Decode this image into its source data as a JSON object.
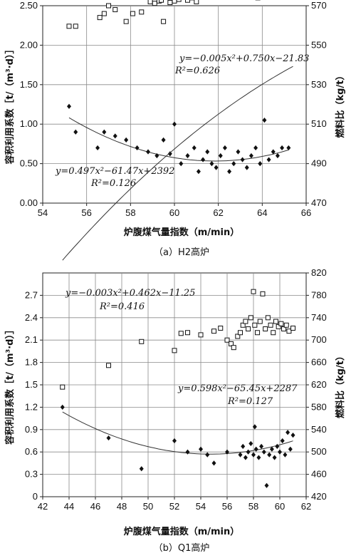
{
  "chart_data": [
    {
      "type": "scatter",
      "caption": "（a）H2高炉",
      "xlabel": "炉腹煤气量指数（m/min）",
      "ylabel": "容积利用系数［t/（m³·d）］",
      "y2label": "燃料比（kg/t）",
      "xlim": [
        54,
        66
      ],
      "ylim": [
        0,
        2.5
      ],
      "y2lim": [
        470,
        570
      ],
      "xticks": [
        "54",
        "56",
        "58",
        "60",
        "62",
        "64",
        "66"
      ],
      "yticks": [
        "0.00",
        "0.50",
        "1.00",
        "1.50",
        "2.00",
        "2.50"
      ],
      "y2ticks": [
        "470",
        "490",
        "510",
        "530",
        "550",
        "570"
      ],
      "grid": true,
      "equations": [
        {
          "text": "y=−0.005x²+0.750x−21.83",
          "r2": "R²=0.626"
        },
        {
          "text": "y=0.497x²−61.47x+2392",
          "r2": "R²=0.126"
        }
      ],
      "series": [
        {
          "marker": "square",
          "axis": "y",
          "points": [
            [
              55.2,
              2.24
            ],
            [
              55.5,
              2.24
            ],
            [
              56.6,
              2.35
            ],
            [
              56.8,
              2.4
            ],
            [
              57.0,
              2.5
            ],
            [
              57.3,
              2.45
            ],
            [
              57.8,
              2.3
            ],
            [
              58.1,
              2.4
            ],
            [
              58.5,
              2.42
            ],
            [
              58.9,
              2.55
            ],
            [
              59.1,
              2.53
            ],
            [
              59.3,
              2.56
            ],
            [
              59.4,
              2.57
            ],
            [
              59.5,
              2.3
            ],
            [
              59.8,
              2.54
            ],
            [
              60.0,
              2.56
            ],
            [
              60.2,
              2.58
            ],
            [
              60.4,
              2.62
            ],
            [
              60.6,
              2.57
            ],
            [
              60.8,
              2.6
            ],
            [
              61.0,
              2.55
            ],
            [
              61.2,
              2.63
            ],
            [
              61.4,
              2.65
            ],
            [
              61.6,
              2.61
            ],
            [
              61.8,
              2.64
            ],
            [
              62.0,
              2.66
            ],
            [
              62.2,
              2.62
            ],
            [
              62.4,
              2.65
            ],
            [
              62.6,
              2.63
            ],
            [
              62.8,
              2.66
            ],
            [
              63.0,
              2.64
            ],
            [
              63.2,
              2.62
            ],
            [
              63.4,
              2.66
            ],
            [
              63.6,
              2.65
            ],
            [
              63.8,
              2.6
            ],
            [
              64.0,
              2.66
            ],
            [
              64.2,
              2.64
            ],
            [
              64.4,
              2.65
            ],
            [
              64.6,
              2.66
            ],
            [
              64.8,
              2.64
            ],
            [
              65.0,
              2.65
            ],
            [
              65.3,
              2.64
            ],
            [
              65.6,
              2.64
            ]
          ]
        },
        {
          "marker": "diamond",
          "axis": "y2",
          "points": [
            [
              55.2,
              519
            ],
            [
              55.5,
              506
            ],
            [
              56.5,
              498
            ],
            [
              56.8,
              506
            ],
            [
              57.3,
              504
            ],
            [
              57.8,
              502
            ],
            [
              58.3,
              498
            ],
            [
              58.8,
              496
            ],
            [
              59.2,
              494
            ],
            [
              59.5,
              502
            ],
            [
              59.8,
              495
            ],
            [
              60.0,
              510
            ],
            [
              60.3,
              490
            ],
            [
              60.6,
              494
            ],
            [
              60.9,
              498
            ],
            [
              61.1,
              486
            ],
            [
              61.3,
              492
            ],
            [
              61.5,
              496
            ],
            [
              61.7,
              490
            ],
            [
              61.9,
              488
            ],
            [
              62.1,
              494
            ],
            [
              62.3,
              498
            ],
            [
              62.5,
              486
            ],
            [
              62.7,
              490
            ],
            [
              62.9,
              496
            ],
            [
              63.1,
              492
            ],
            [
              63.3,
              488
            ],
            [
              63.5,
              494
            ],
            [
              63.7,
              498
            ],
            [
              63.9,
              490
            ],
            [
              64.1,
              512
            ],
            [
              64.3,
              492
            ],
            [
              64.5,
              496
            ],
            [
              64.7,
              494
            ],
            [
              64.9,
              498
            ],
            [
              65.2,
              498
            ]
          ]
        }
      ]
    },
    {
      "type": "scatter",
      "caption": "（b）Q1高炉",
      "xlabel": "炉腹煤气量指数（m/min）",
      "ylabel": "容积利用系数［t/（m³·d）］",
      "y2label": "燃料比（kg/t）",
      "xlim": [
        42,
        62
      ],
      "ylim": [
        0,
        3.0
      ],
      "y2lim": [
        420,
        820
      ],
      "xticks": [
        "42",
        "44",
        "46",
        "48",
        "50",
        "52",
        "54",
        "56",
        "58",
        "60",
        "62"
      ],
      "yticks": [
        "0",
        "0.3",
        "0.6",
        "0.9",
        "1.2",
        "1.5",
        "1.8",
        "2.1",
        "2.4",
        "2.7"
      ],
      "y2ticks": [
        "420",
        "460",
        "500",
        "540",
        "580",
        "620",
        "660",
        "700",
        "740",
        "780",
        "820"
      ],
      "grid": true,
      "equations": [
        {
          "text": "y=−0.003x²+0.462x−11.25",
          "r2": "R²=0.416"
        },
        {
          "text": "y=0.598x²−65.45x+2287",
          "r2": "R²=0.127"
        }
      ],
      "series": [
        {
          "marker": "square",
          "axis": "y",
          "points": [
            [
              43.5,
              1.47
            ],
            [
              47.0,
              1.76
            ],
            [
              49.5,
              2.08
            ],
            [
              52.0,
              1.96
            ],
            [
              52.5,
              2.19
            ],
            [
              53.0,
              2.2
            ],
            [
              54.0,
              2.17
            ],
            [
              55.0,
              2.22
            ],
            [
              55.5,
              2.26
            ],
            [
              56.0,
              2.1
            ],
            [
              56.3,
              2.05
            ],
            [
              56.5,
              2.0
            ],
            [
              56.8,
              2.15
            ],
            [
              57.0,
              2.2
            ],
            [
              57.2,
              2.3
            ],
            [
              57.4,
              2.35
            ],
            [
              57.6,
              2.25
            ],
            [
              57.8,
              2.4
            ],
            [
              58.0,
              2.75
            ],
            [
              58.1,
              2.3
            ],
            [
              58.3,
              2.2
            ],
            [
              58.5,
              2.35
            ],
            [
              58.7,
              2.72
            ],
            [
              58.9,
              2.25
            ],
            [
              59.1,
              2.4
            ],
            [
              59.3,
              2.3
            ],
            [
              59.5,
              2.2
            ],
            [
              59.7,
              2.35
            ],
            [
              59.9,
              2.28
            ],
            [
              60.1,
              2.32
            ],
            [
              60.3,
              2.25
            ],
            [
              60.5,
              2.3
            ],
            [
              60.7,
              2.22
            ],
            [
              61.0,
              2.26
            ]
          ]
        },
        {
          "marker": "diamond",
          "axis": "y2",
          "points": [
            [
              43.5,
              580
            ],
            [
              47.0,
              525
            ],
            [
              49.5,
              470
            ],
            [
              52.0,
              520
            ],
            [
              53.0,
              500
            ],
            [
              54.0,
              505
            ],
            [
              54.5,
              495
            ],
            [
              55.0,
              480
            ],
            [
              56.0,
              500
            ],
            [
              57.0,
              495
            ],
            [
              57.2,
              510
            ],
            [
              57.4,
              490
            ],
            [
              57.6,
              500
            ],
            [
              57.8,
              515
            ],
            [
              58.0,
              495
            ],
            [
              58.1,
              545
            ],
            [
              58.2,
              505
            ],
            [
              58.4,
              490
            ],
            [
              58.6,
              510
            ],
            [
              58.8,
              500
            ],
            [
              59.0,
              440
            ],
            [
              59.2,
              495
            ],
            [
              59.4,
              505
            ],
            [
              59.6,
              490
            ],
            [
              59.8,
              510
            ],
            [
              60.0,
              500
            ],
            [
              60.2,
              520
            ],
            [
              60.4,
              495
            ],
            [
              60.6,
              535
            ],
            [
              60.8,
              505
            ],
            [
              61.0,
              530
            ]
          ]
        }
      ]
    }
  ]
}
